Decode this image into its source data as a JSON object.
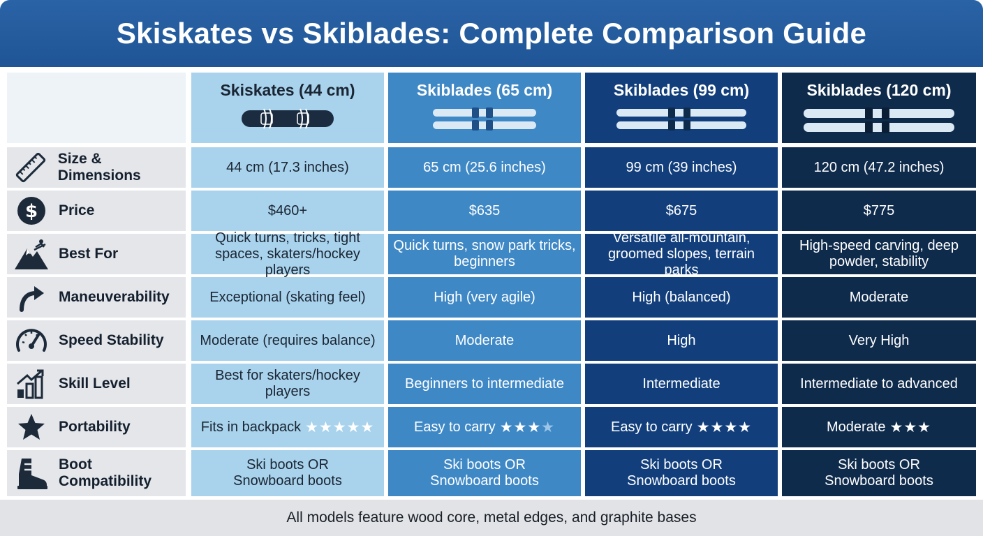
{
  "title": "Skiskates vs Skiblades: Complete Comparison Guide",
  "columns": [
    {
      "name": "Skiskates (44 cm)",
      "icon": "skiskate-icon"
    },
    {
      "name": "Skiblades (65 cm)",
      "icon": "skiblades-icon"
    },
    {
      "name": "Skiblades (99 cm)",
      "icon": "skiblades-icon"
    },
    {
      "name": "Skiblades (120 cm)",
      "icon": "skiblades-icon"
    }
  ],
  "rows": [
    {
      "label": "Size & Dimensions",
      "icon": "ruler-icon",
      "values": [
        "44 cm (17.3 inches)",
        "65 cm (25.6 inches)",
        "99 cm (39 inches)",
        "120 cm (47.2 inches)"
      ]
    },
    {
      "label": "Price",
      "icon": "dollar-icon",
      "values": [
        "$460+",
        "$635",
        "$675",
        "$775"
      ]
    },
    {
      "label": "Best For",
      "icon": "mountain-skier-icon",
      "values": [
        "Quick turns, tricks, tight spaces, skaters/hockey players",
        "Quick turns, snow park tricks, beginners",
        "Versatile all-mountain, groomed slopes, terrain parks",
        "High-speed carving, deep powder, stability"
      ]
    },
    {
      "label": "Maneuverability",
      "icon": "curved-arrow-icon",
      "values": [
        "Exceptional (skating feel)",
        "High (very agile)",
        "High (balanced)",
        "Moderate"
      ]
    },
    {
      "label": "Speed Stability",
      "icon": "speedometer-icon",
      "values": [
        "Moderate (requires balance)",
        "Moderate",
        "High",
        "Very High"
      ]
    },
    {
      "label": "Skill Level",
      "icon": "bar-chart-icon",
      "values": [
        "Best for skaters/hockey players",
        "Beginners to intermediate",
        "Intermediate",
        "Intermediate to advanced"
      ]
    },
    {
      "label": "Portability",
      "icon": "star-icon",
      "values": [
        "Fits in backpack",
        "Easy to carry",
        "Easy to carry",
        "Moderate"
      ],
      "stars": [
        5,
        3.5,
        4,
        3
      ]
    },
    {
      "label": "Boot Compatibility",
      "icon": "boot-icon",
      "values": [
        "Ski boots OR Snowboard boots",
        "Ski boots OR Snowboard boots",
        "Ski boots OR Snowboard boots",
        "Ski boots OR Snowboard boots"
      ]
    }
  ],
  "footer": "All models feature wood core, metal edges, and graphite bases"
}
